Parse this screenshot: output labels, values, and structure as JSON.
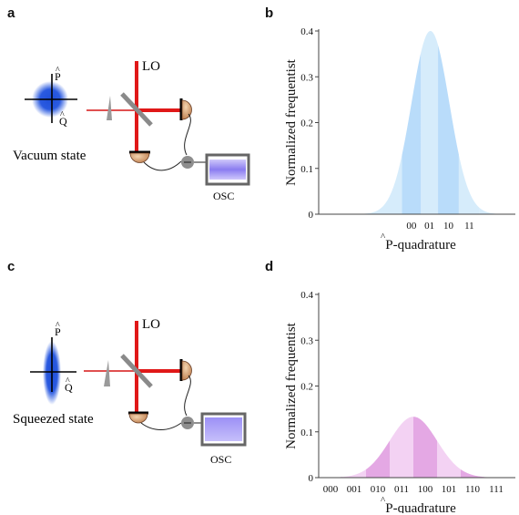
{
  "panels": [
    {
      "letter": "a",
      "state_label": "Vacuum state",
      "lo_label": "LO",
      "osc_label": "OSC",
      "p_axis": "P",
      "q_axis": "Q"
    },
    {
      "letter": "b"
    },
    {
      "letter": "c",
      "state_label": "Squeezed state",
      "lo_label": "LO",
      "osc_label": "OSC",
      "p_axis": "P",
      "q_axis": "Q"
    },
    {
      "letter": "d"
    }
  ],
  "colors": {
    "vacuum_blob": "#1f4fd8",
    "laser": "#e02020",
    "mirror": "#8a8a8a",
    "detector": "#d8a070",
    "osc_screen": "#8a7cf0",
    "b_dark": "#b9dcfa",
    "b_light": "#d6ecfb",
    "d_dark": "#e4a8e4",
    "d_light": "#f3d2f3"
  },
  "chart_data": [
    {
      "type": "area",
      "title": "",
      "xlabel": "P-quadrature",
      "ylabel": "Normalized frequentist",
      "ylim": [
        0,
        0.4
      ],
      "yticks": [
        "0",
        "0.1",
        "0.2",
        "0.3",
        "0.4"
      ],
      "gaussian": {
        "mean": 0,
        "sigma": 1,
        "peak": 0.4
      },
      "xlim": [
        -5.9,
        4.1
      ],
      "bins": [
        "00",
        "01",
        "10",
        "11"
      ],
      "bin_edges": [
        -1.5,
        -0.5,
        0.4,
        1.5,
        2.6
      ]
    },
    {
      "type": "area",
      "title": "",
      "xlabel": "P-quadrature",
      "ylabel": "Normalized frequentist",
      "ylim": [
        0,
        0.4
      ],
      "yticks": [
        "0",
        "0.1",
        "0.2",
        "0.3",
        "0.4"
      ],
      "gaussian": {
        "mean": 0,
        "sigma": 3,
        "peak": 0.133
      },
      "xlim": [
        -12,
        12
      ],
      "bins": [
        "000",
        "001",
        "010",
        "011",
        "100",
        "101",
        "110",
        "111"
      ],
      "bin_edges": [
        -12,
        -9,
        -6,
        -3,
        0,
        3,
        6,
        9,
        12
      ]
    }
  ]
}
